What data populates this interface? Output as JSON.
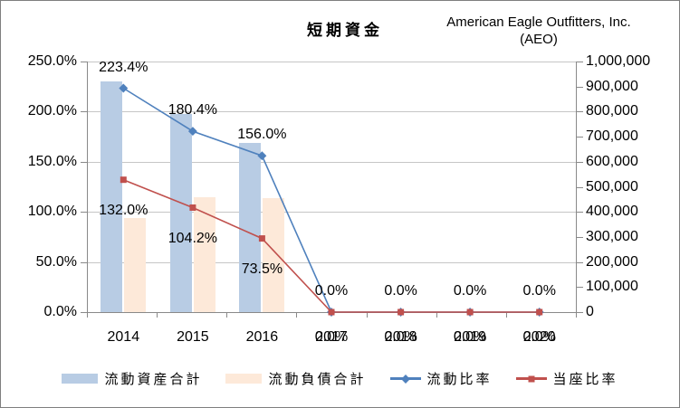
{
  "header": {
    "chart_title": "短期資金",
    "company_line1": "American Eagle Outfitters, Inc.",
    "company_line2": "(AEO)"
  },
  "colors": {
    "bar_assets": "#b8cce4",
    "bar_liabilities": "#fde9d9",
    "line_current_ratio": "#4f81bd",
    "line_quick_ratio": "#c0504d",
    "gridline": "#c6c6c6",
    "axis": "#898989",
    "text": "#000000"
  },
  "chart_data": {
    "type": "combo-bar-line",
    "title": "短期資金",
    "subtitle": "American Eagle Outfitters, Inc. (AEO)",
    "categories": [
      "2014",
      "2015",
      "2016",
      "2017",
      "2018",
      "2019",
      "2020"
    ],
    "left_axis": {
      "unit": "percent",
      "min": 0,
      "max": 250,
      "tick_step": 50,
      "tick_labels": [
        "250.0%",
        "200.0%",
        "150.0%",
        "100.0%",
        "50.0%",
        "0.0%"
      ]
    },
    "right_axis": {
      "unit": "number",
      "min": 0,
      "max": 1000000,
      "tick_step": 100000,
      "tick_labels": [
        "1,000,000",
        "900,000",
        "800,000",
        "700,000",
        "600,000",
        "500,000",
        "400,000",
        "300,000",
        "200,000",
        "100,000",
        "0"
      ]
    },
    "gridlines": "horizontal",
    "legend_position": "bottom",
    "series": [
      {
        "name": "流動資産合計",
        "type": "bar",
        "axis": "right",
        "color": "#b8cce4",
        "values": [
          920000,
          790000,
          675000,
          0,
          0,
          0,
          0
        ]
      },
      {
        "name": "流動負債合計",
        "type": "bar",
        "axis": "right",
        "color": "#fde9d9",
        "values": [
          375000,
          460000,
          455000,
          0,
          0,
          0,
          0
        ]
      },
      {
        "name": "流動比率",
        "type": "line",
        "axis": "left",
        "color": "#4f81bd",
        "marker": "diamond",
        "values_percent": [
          223.4,
          180.4,
          156.0,
          0.0,
          0.0,
          0.0,
          0.0
        ],
        "data_labels": [
          "223.4%",
          "180.4%",
          "156.0%",
          "0.0%",
          "0.0%",
          "0.0%",
          "0.0%"
        ],
        "label_position": "above"
      },
      {
        "name": "当座比率",
        "type": "line",
        "axis": "left",
        "color": "#c0504d",
        "marker": "square",
        "values_percent": [
          132.0,
          104.2,
          73.5,
          0.0,
          0.0,
          0.0,
          0.0
        ],
        "data_labels": [
          "132.0%",
          "104.2%",
          "73.5%",
          "0.0%",
          "0.0%",
          "0.0%",
          "0.0%"
        ],
        "label_position": "below"
      }
    ]
  }
}
